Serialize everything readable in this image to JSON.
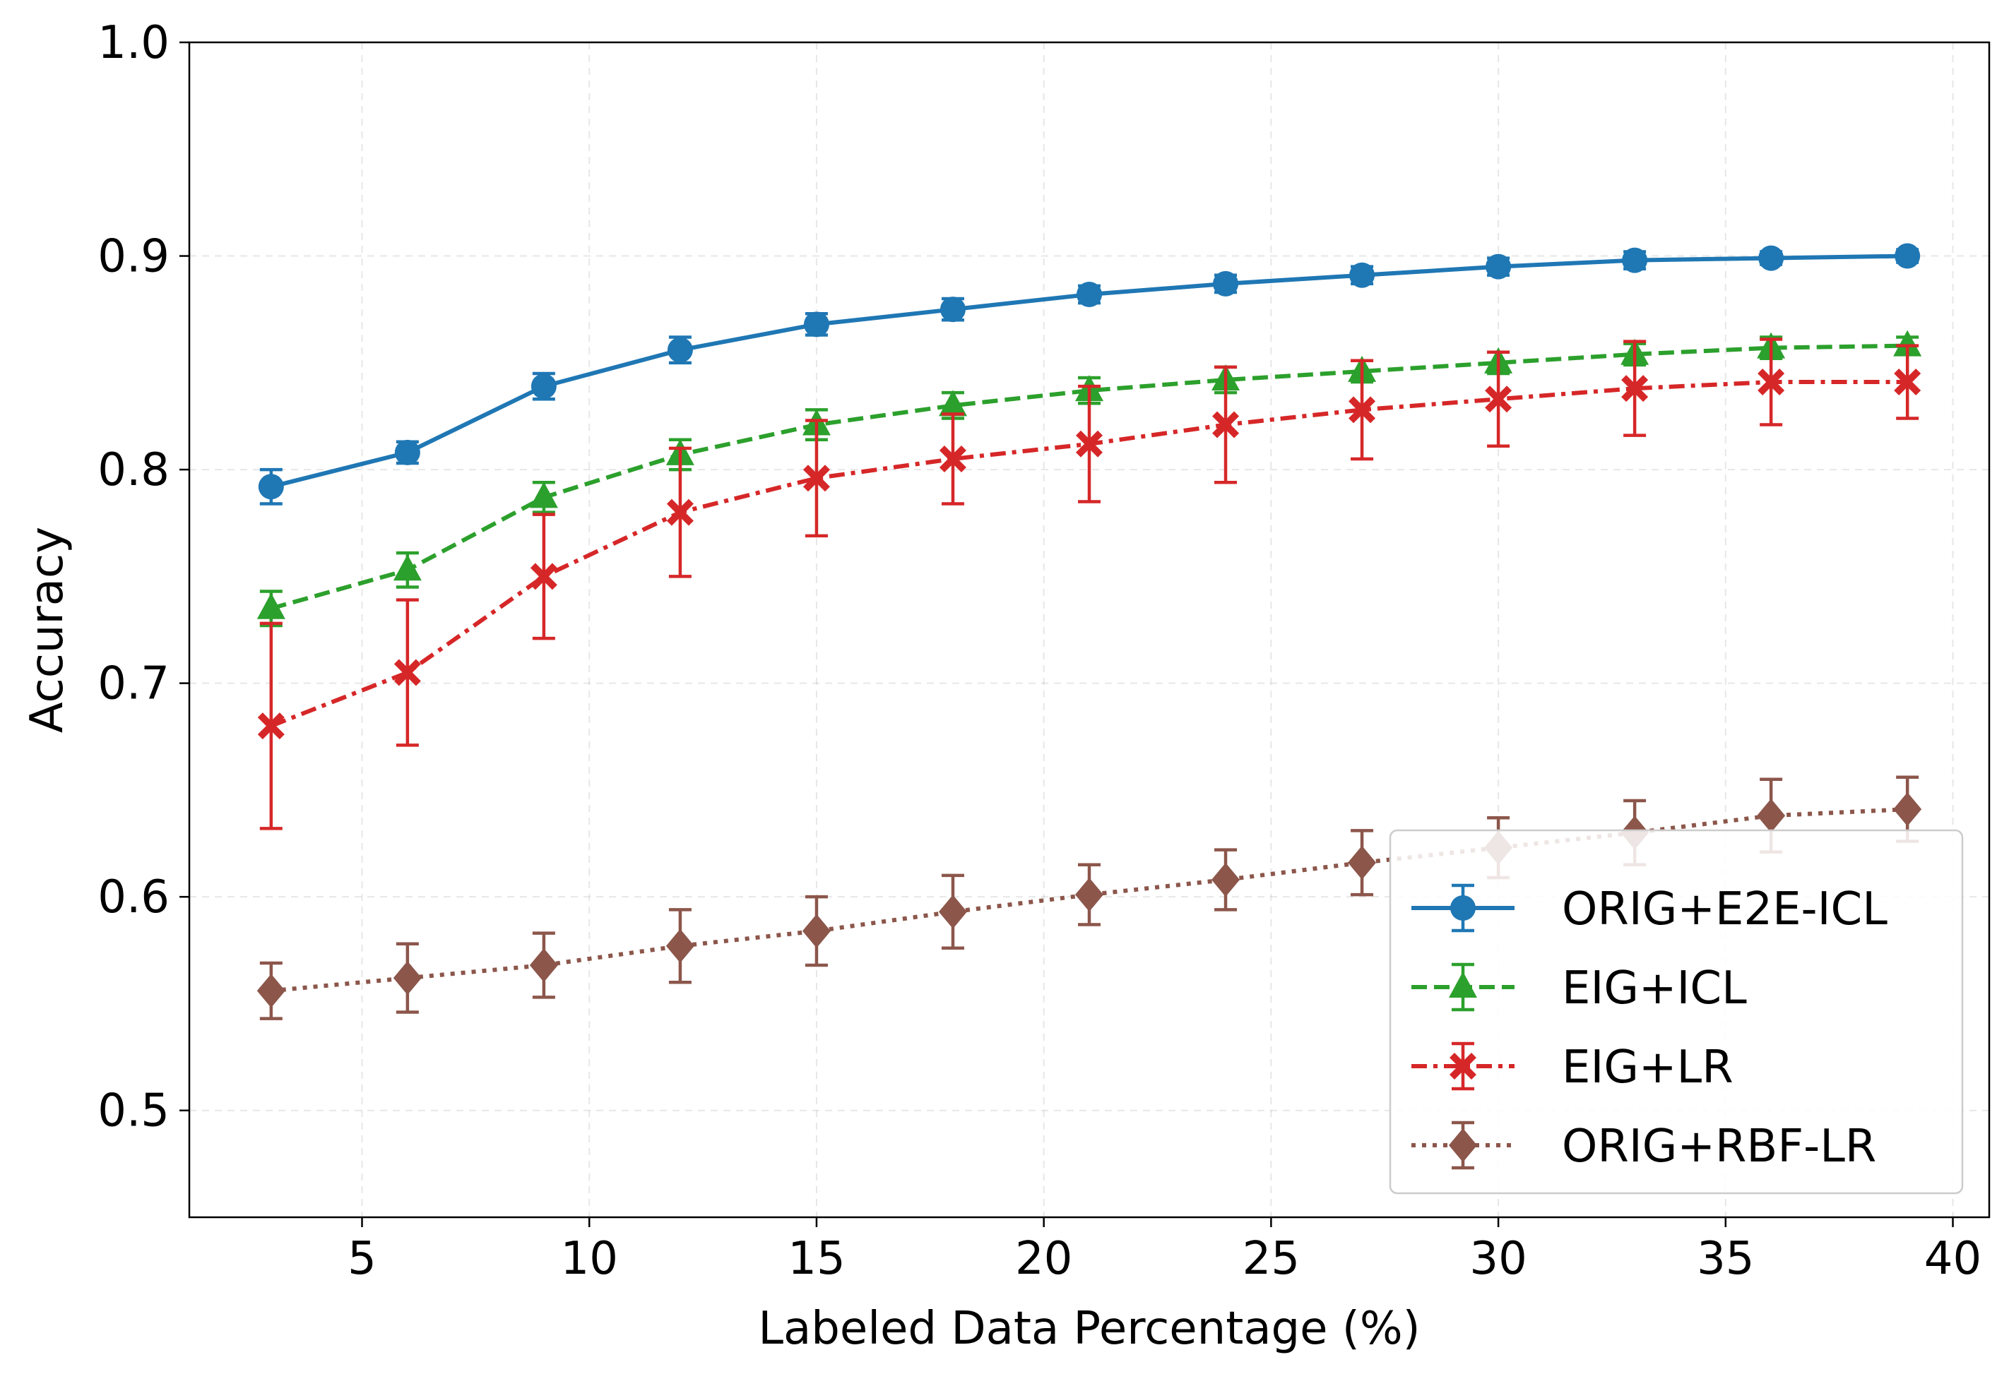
{
  "chart_data": {
    "type": "line",
    "title": "",
    "xlabel": "Labeled Data Percentage (%)",
    "ylabel": "Accuracy",
    "xlim": [
      1.2,
      40.8
    ],
    "ylim": [
      0.45,
      1.0
    ],
    "xticks": [
      5,
      10,
      15,
      20,
      25,
      30,
      35,
      40
    ],
    "yticks": [
      0.5,
      0.6,
      0.7,
      0.8,
      0.9,
      1.0
    ],
    "xtick_labels": [
      "5",
      "10",
      "15",
      "20",
      "25",
      "30",
      "35",
      "40"
    ],
    "ytick_labels": [
      "0.5",
      "0.6",
      "0.7",
      "0.8",
      "0.9",
      "1.0"
    ],
    "grid": true,
    "legend_position": "lower-right",
    "x": [
      3,
      6,
      9,
      12,
      15,
      18,
      21,
      24,
      27,
      30,
      33,
      36,
      39
    ],
    "series": [
      {
        "name": "ORIG+E2E-ICL",
        "color": "#1f77b4",
        "linestyle": "solid",
        "marker": "circle",
        "values": [
          0.792,
          0.808,
          0.839,
          0.856,
          0.868,
          0.875,
          0.882,
          0.887,
          0.891,
          0.895,
          0.898,
          0.899,
          0.9
        ],
        "errors": [
          0.008,
          0.005,
          0.006,
          0.006,
          0.005,
          0.005,
          0.004,
          0.004,
          0.004,
          0.004,
          0.004,
          0.003,
          0.003
        ]
      },
      {
        "name": "EIG+ICL",
        "color": "#2ca02c",
        "linestyle": "dashed",
        "marker": "triangle",
        "values": [
          0.735,
          0.753,
          0.787,
          0.807,
          0.821,
          0.83,
          0.837,
          0.842,
          0.846,
          0.85,
          0.854,
          0.857,
          0.858
        ],
        "errors": [
          0.008,
          0.008,
          0.007,
          0.007,
          0.007,
          0.006,
          0.006,
          0.006,
          0.005,
          0.005,
          0.005,
          0.005,
          0.004
        ]
      },
      {
        "name": "EIG+LR",
        "color": "#d62728",
        "linestyle": "dashdot",
        "marker": "x-filled",
        "values": [
          0.68,
          0.705,
          0.75,
          0.78,
          0.796,
          0.805,
          0.812,
          0.821,
          0.828,
          0.833,
          0.838,
          0.841,
          0.841
        ],
        "errors": [
          0.048,
          0.034,
          0.029,
          0.03,
          0.027,
          0.021,
          0.027,
          0.027,
          0.023,
          0.022,
          0.022,
          0.02,
          0.017
        ]
      },
      {
        "name": "ORIG+RBF-LR",
        "color": "#8c564b",
        "linestyle": "dotted",
        "marker": "diamond",
        "values": [
          0.556,
          0.562,
          0.568,
          0.577,
          0.584,
          0.593,
          0.601,
          0.608,
          0.616,
          0.623,
          0.63,
          0.638,
          0.641
        ],
        "errors": [
          0.013,
          0.016,
          0.015,
          0.017,
          0.016,
          0.017,
          0.014,
          0.014,
          0.015,
          0.014,
          0.015,
          0.017,
          0.015
        ]
      }
    ]
  }
}
